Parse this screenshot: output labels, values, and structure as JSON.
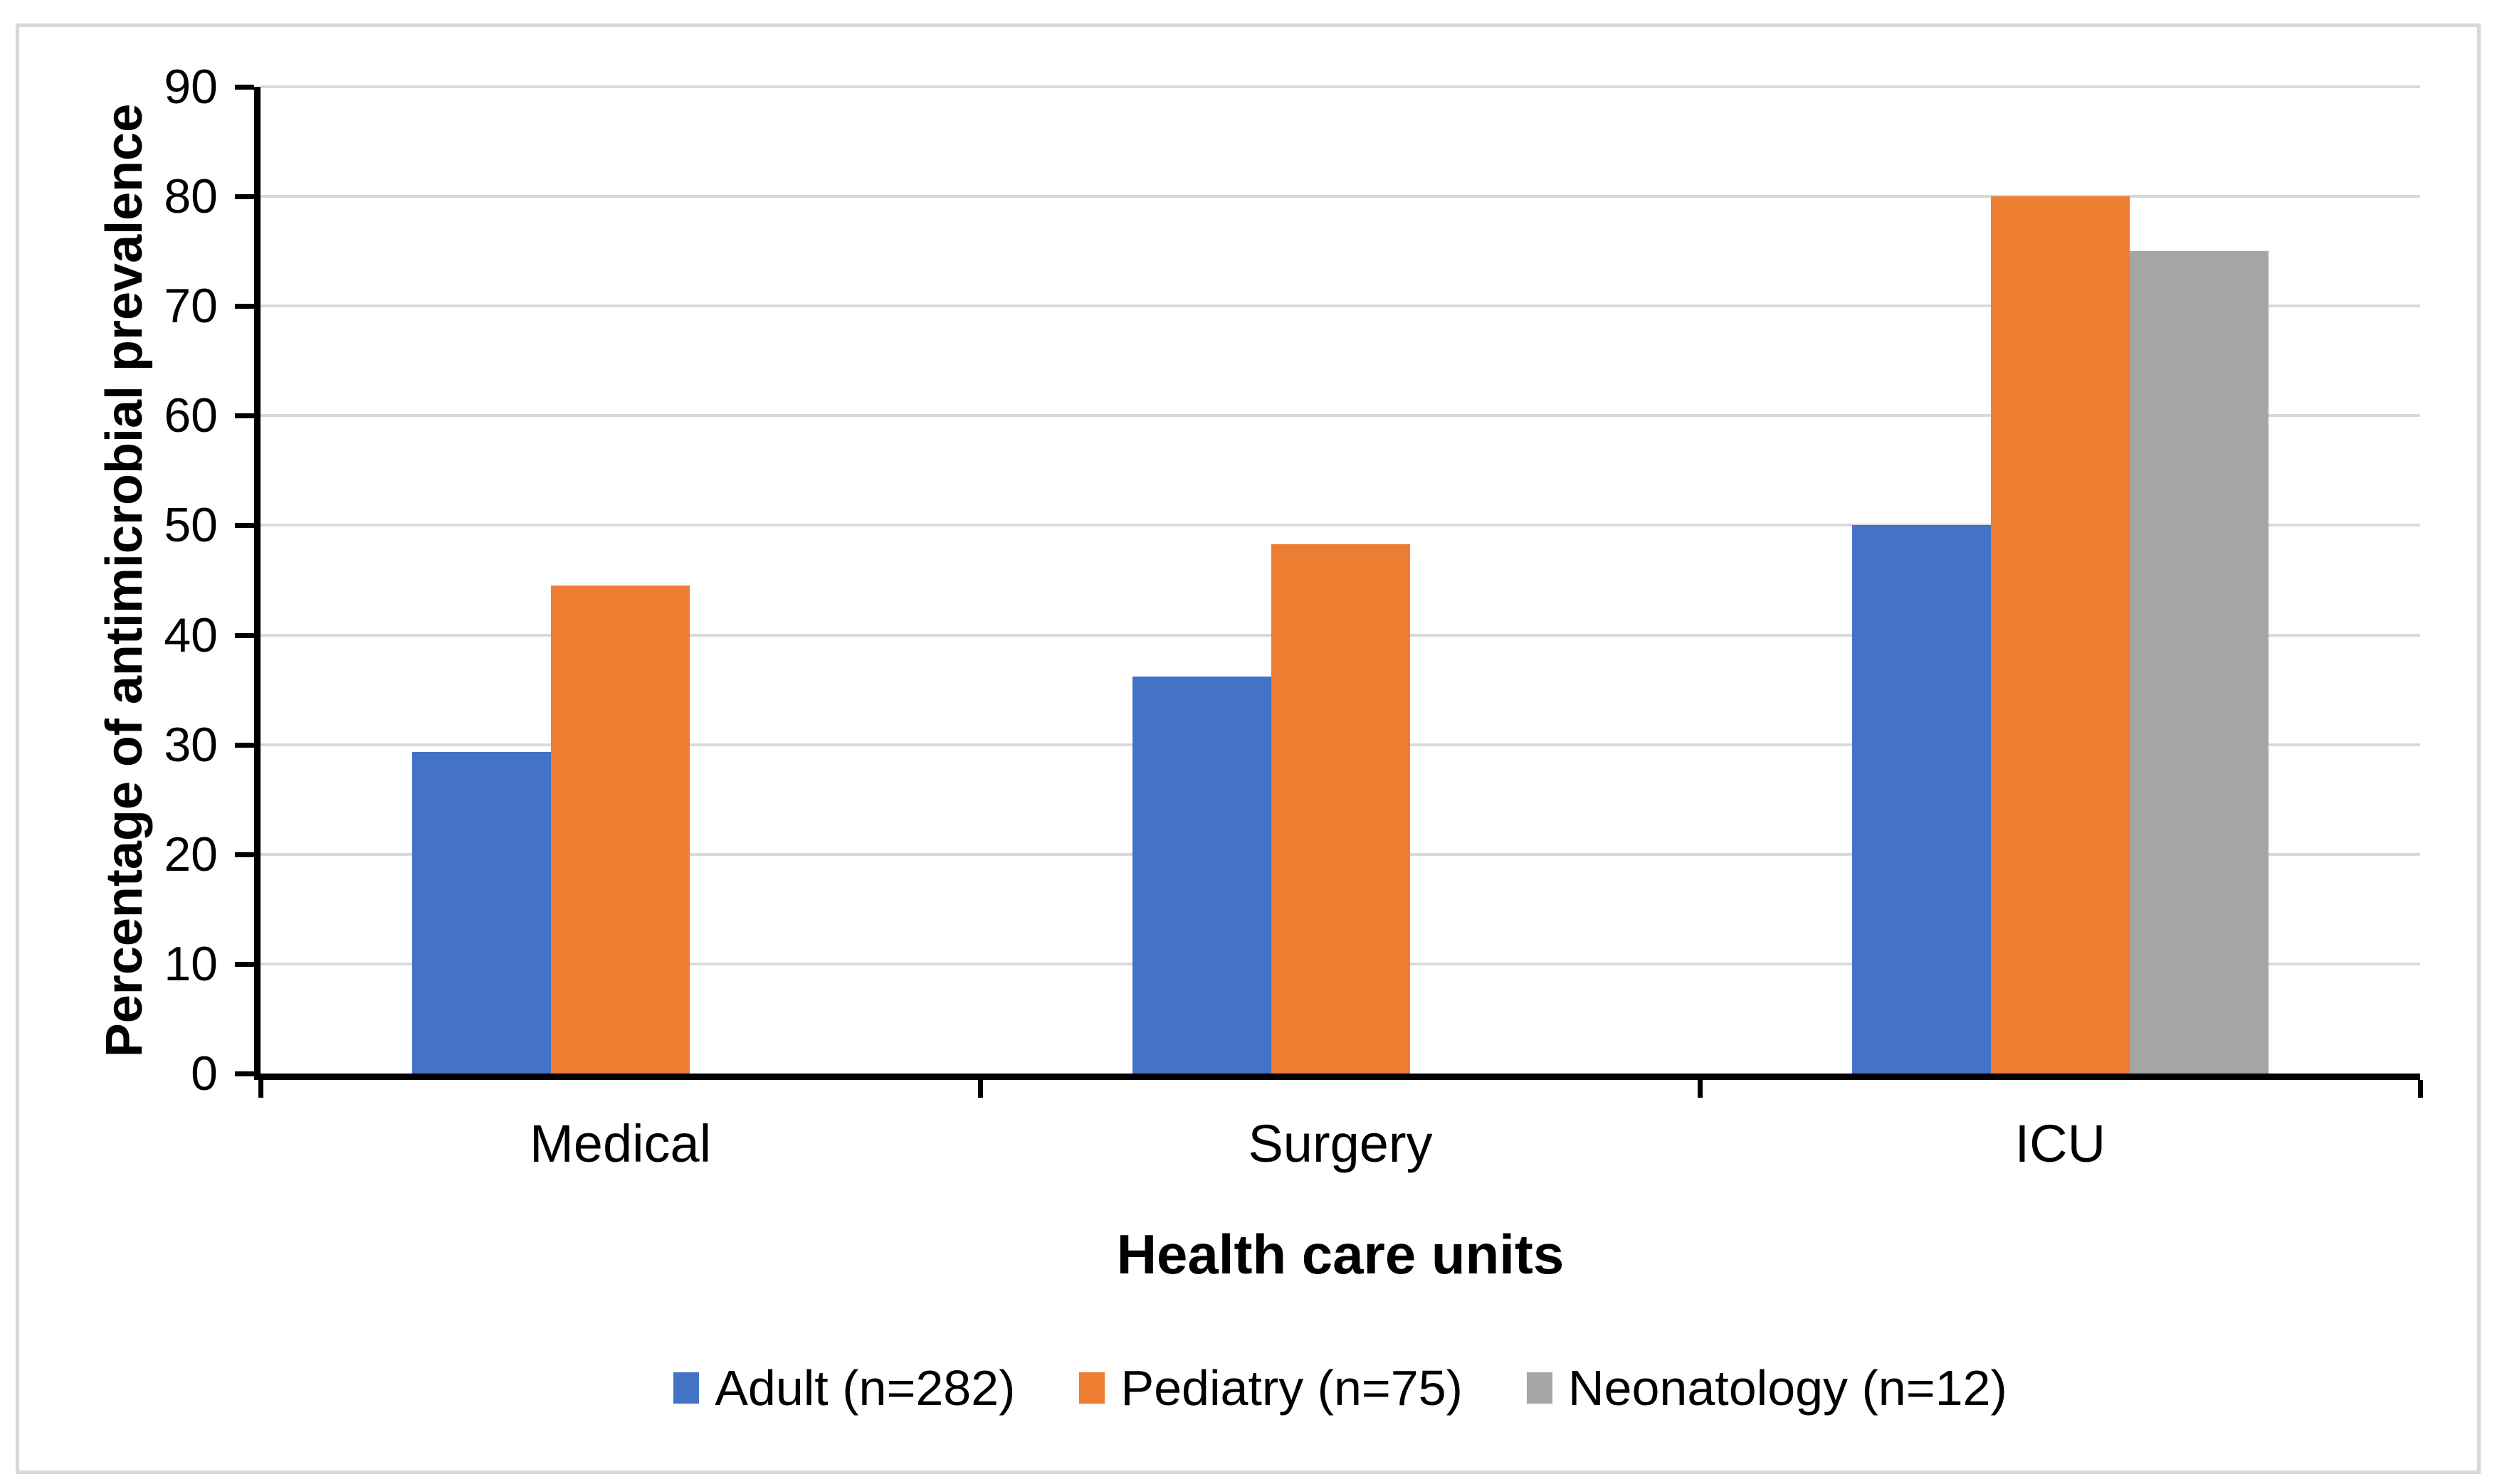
{
  "chart_data": {
    "type": "bar",
    "title": "",
    "xlabel": "Health care units",
    "ylabel": "Percentage of antimicrobial prevalence",
    "categories": [
      "Medical",
      "Surgery",
      "ICU"
    ],
    "series": [
      {
        "name": "Adult (n=282)",
        "color": "#4472C4",
        "values": [
          29.3,
          36.2,
          50
        ]
      },
      {
        "name": "Pediatry (n=75)",
        "color": "#ED7D31",
        "values": [
          44.5,
          48.3,
          80
        ]
      },
      {
        "name": "Neonatology (n=12)",
        "color": "#A5A5A5",
        "values": [
          null,
          null,
          75
        ]
      }
    ],
    "ylim": [
      0,
      90
    ],
    "ytick_step": 10,
    "ytick_labels": [
      "0",
      "10",
      "20",
      "30",
      "40",
      "50",
      "60",
      "70",
      "80",
      "90"
    ],
    "grid": "horizontal",
    "gridline_color": "#D9D9D9",
    "axis_color": "#000000",
    "chart_border_color": "#D8D8D8",
    "background": "#FFFFFF",
    "legend_position": "bottom"
  }
}
